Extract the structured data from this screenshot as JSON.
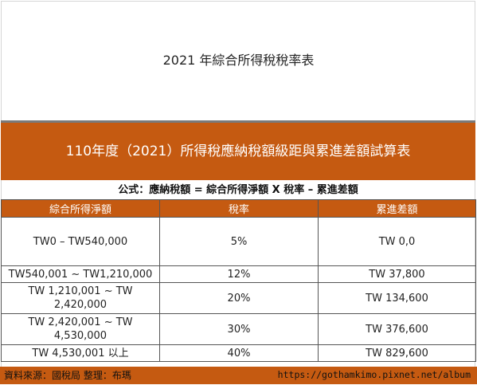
{
  "page_title": "2021 年綜合所得稅稅率表",
  "banner_title": "110年度（2021）所得稅應納稅額級距與累進差額試算表",
  "formula": "公式：應納稅額 = 綜合所得淨額 X 稅率 – 累進差額",
  "table": {
    "headers": [
      "綜合所得淨額",
      "稅率",
      "累進差額"
    ],
    "rows": [
      [
        "TW0 – TW540,000",
        "5%",
        "TW 0,0"
      ],
      [
        "TW540,001 ~ TW1,210,000",
        "12%",
        "TW 37,800"
      ],
      [
        "TW 1,210,001 ~ TW 2,420,000",
        "20%",
        "TW 134,600"
      ],
      [
        "TW 2,420,001 ~ TW 4,530,000",
        "30%",
        "TW 376,600"
      ],
      [
        "TW 4,530,001 以上",
        "40%",
        "TW 829,600"
      ]
    ]
  },
  "footer": {
    "source": "資料來源：國稅局 整理：布瑪",
    "watermark": "https://gothamkimo.pixnet.net/album"
  },
  "colors": {
    "accent": "#c55a11"
  }
}
